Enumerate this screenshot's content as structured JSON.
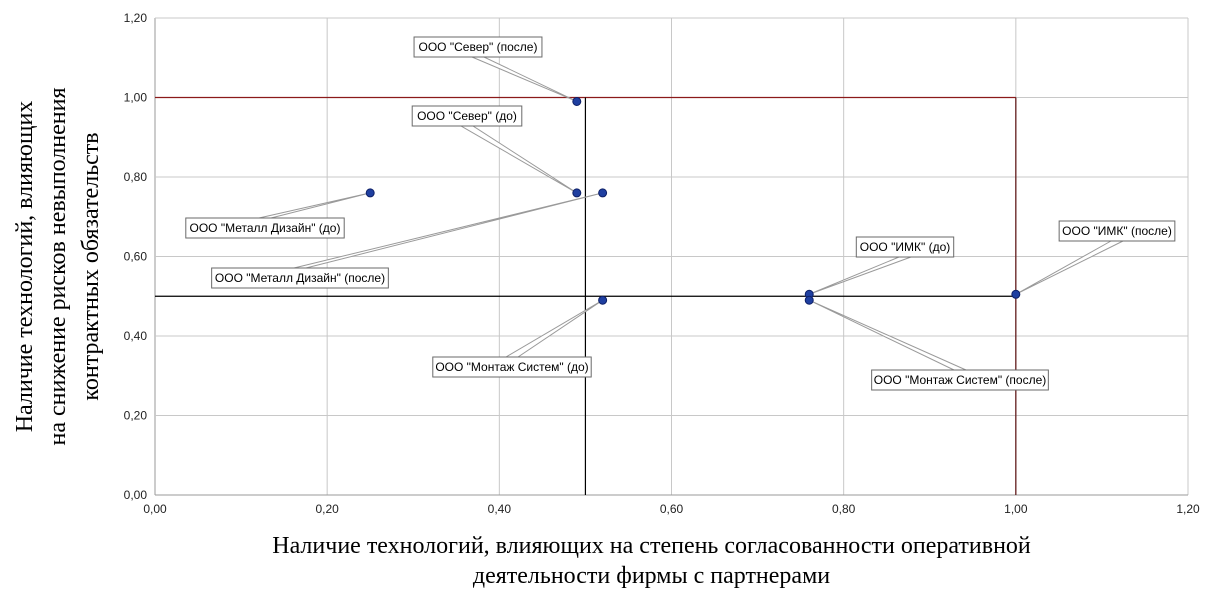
{
  "chart_data": {
    "type": "scatter",
    "xlabel_lines": [
      "Наличие технологий, влияющих на степень согласованности оперативной",
      "деятельности фирмы с партнерами"
    ],
    "ylabel_lines": [
      "Наличие технологий, влияющих",
      "на снижение рисков невыполнения",
      "контрактных обязательств"
    ],
    "xlim": [
      0,
      1.2
    ],
    "ylim": [
      0,
      1.2
    ],
    "x_ticks": [
      "0,00",
      "0,20",
      "0,40",
      "0,60",
      "0,80",
      "1,00",
      "1,20"
    ],
    "y_ticks": [
      "0,00",
      "0,20",
      "0,40",
      "0,60",
      "0,80",
      "1,00",
      "1,20"
    ],
    "grid": true,
    "point_color": "#1f3fa0",
    "points": [
      {
        "label": "ООО \"Север\" (после)",
        "x": 0.49,
        "y": 0.99
      },
      {
        "label": "ООО \"Север\" (до)",
        "x": 0.49,
        "y": 0.76
      },
      {
        "label": "ООО \"Металл Дизайн\" (до)",
        "x": 0.25,
        "y": 0.76
      },
      {
        "label": "ООО \"Металл Дизайн\" (после)",
        "x": 0.52,
        "y": 0.76
      },
      {
        "label": "ООО \"Монтаж Систем\" (до)",
        "x": 0.52,
        "y": 0.49
      },
      {
        "label": "ООО \"ИМК\" (до)",
        "x": 0.76,
        "y": 0.505
      },
      {
        "label": "ООО \"Монтаж Систем\" (после)",
        "x": 0.76,
        "y": 0.49
      },
      {
        "label": "ООО \"ИМК\" (после)",
        "x": 1.0,
        "y": 0.505
      }
    ],
    "reference_lines": [
      {
        "orientation": "horizontal",
        "value": 1.0,
        "from": 0,
        "to": 1.0,
        "color": "#8b1a1a"
      },
      {
        "orientation": "horizontal",
        "value": 0.5,
        "from": 0,
        "to": 1.0,
        "color": "#000000"
      },
      {
        "orientation": "vertical",
        "value": 0.5,
        "from": 0,
        "to": 1.0,
        "color": "#000000"
      },
      {
        "orientation": "vertical",
        "value": 1.0,
        "from": 0,
        "to": 1.0,
        "color": "#5a0f0f"
      }
    ]
  }
}
